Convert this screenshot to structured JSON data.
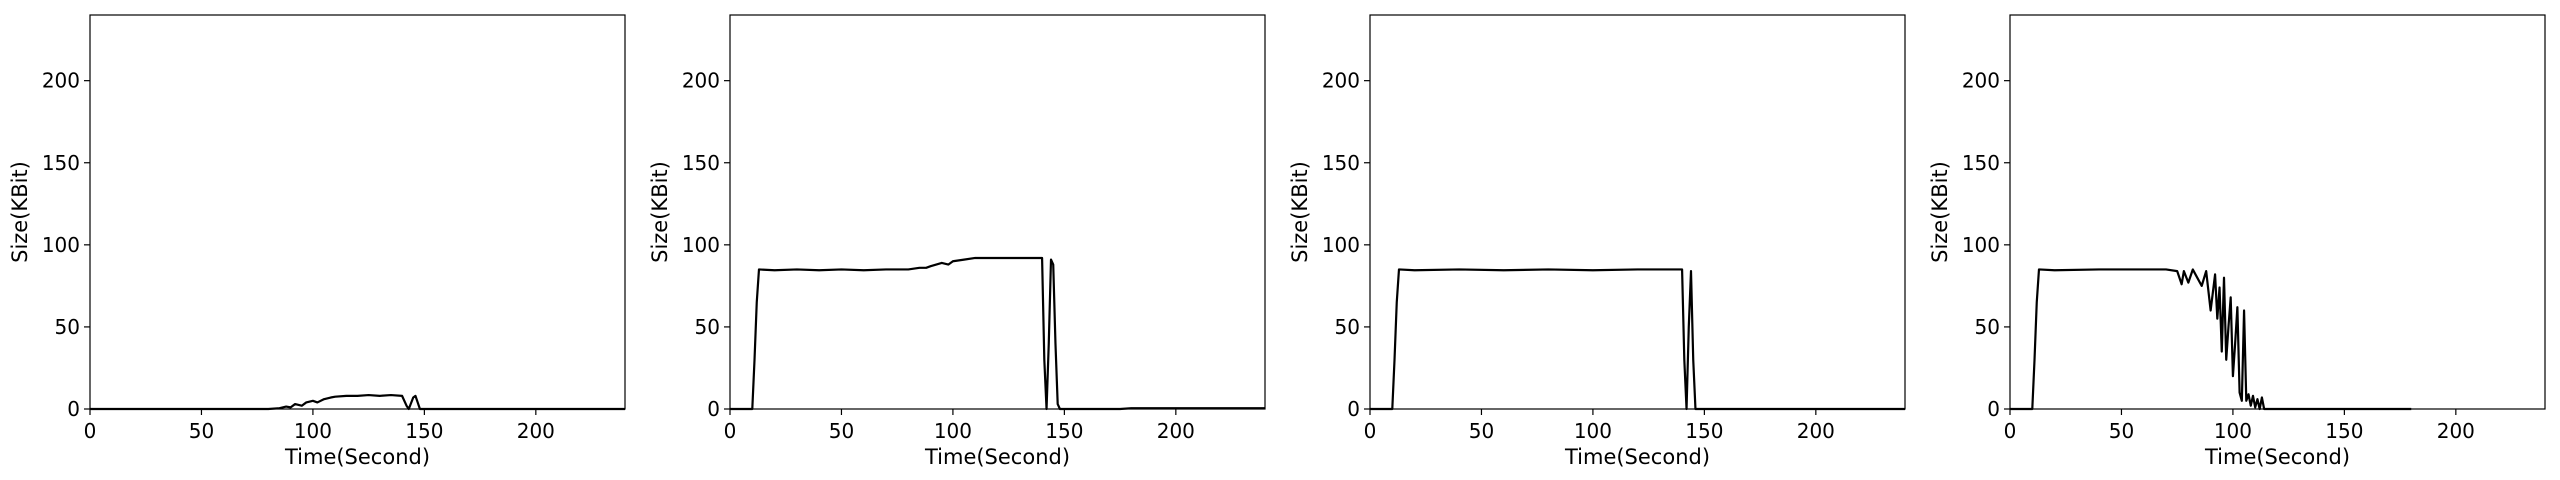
{
  "chart_data": [
    {
      "type": "line",
      "xlabel": "Time(Second)",
      "ylabel": "Size(KBit)",
      "xlim": [
        0,
        240
      ],
      "ylim": [
        0,
        240
      ],
      "xticks": [
        0,
        50,
        100,
        150,
        200
      ],
      "yticks": [
        0,
        50,
        100,
        150,
        200
      ],
      "grid": false,
      "series": [
        {
          "color": "#000000",
          "x": [
            0,
            10,
            20,
            40,
            60,
            80,
            85,
            88,
            90,
            92,
            95,
            97,
            100,
            102,
            105,
            108,
            110,
            115,
            120,
            125,
            130,
            135,
            140,
            142,
            143,
            145,
            146,
            147,
            148,
            150,
            160,
            180,
            200,
            220,
            240
          ],
          "y": [
            0,
            0,
            0,
            0,
            0,
            0,
            0.5,
            1.5,
            1,
            3,
            2,
            4,
            5,
            4,
            6,
            7,
            7.5,
            8,
            8,
            8.5,
            8,
            8.5,
            8,
            2,
            0,
            7,
            8,
            4,
            0,
            0,
            0,
            0,
            0,
            0,
            0
          ]
        }
      ]
    },
    {
      "type": "line",
      "xlabel": "Time(Second)",
      "ylabel": "Size(KBit)",
      "xlim": [
        0,
        240
      ],
      "ylim": [
        0,
        240
      ],
      "xticks": [
        0,
        50,
        100,
        150,
        200
      ],
      "yticks": [
        0,
        50,
        100,
        150,
        200
      ],
      "grid": false,
      "series": [
        {
          "color": "#000000",
          "x": [
            0,
            5,
            10,
            11,
            12,
            13,
            20,
            30,
            40,
            50,
            60,
            70,
            80,
            85,
            88,
            90,
            95,
            98,
            100,
            105,
            110,
            120,
            130,
            138,
            140,
            141,
            142,
            143,
            144,
            145,
            146,
            147,
            148,
            150,
            160,
            170,
            175,
            180,
            200,
            220,
            240
          ],
          "y": [
            0,
            0,
            0,
            30,
            65,
            85,
            84.5,
            85,
            84.5,
            85,
            84.5,
            85,
            85,
            86,
            86,
            87,
            89,
            88,
            90,
            91,
            92,
            92,
            92,
            92,
            92,
            30,
            0,
            40,
            91,
            88,
            40,
            3,
            0,
            0,
            0,
            0,
            0,
            0.5,
            0.5,
            0.5,
            0.5
          ]
        }
      ]
    },
    {
      "type": "line",
      "xlabel": "Time(Second)",
      "ylabel": "Size(KBit)",
      "xlim": [
        0,
        240
      ],
      "ylim": [
        0,
        240
      ],
      "xticks": [
        0,
        50,
        100,
        150,
        200
      ],
      "yticks": [
        0,
        50,
        100,
        150,
        200
      ],
      "grid": false,
      "series": [
        {
          "color": "#000000",
          "x": [
            0,
            5,
            10,
            11,
            12,
            13,
            20,
            40,
            60,
            80,
            100,
            120,
            140,
            141,
            142,
            143,
            144,
            145,
            146,
            150,
            160,
            180,
            200,
            220,
            240
          ],
          "y": [
            0,
            0,
            0,
            30,
            65,
            85,
            84.5,
            85,
            84.5,
            85,
            84.5,
            85,
            85,
            30,
            0,
            50,
            84,
            30,
            0,
            0,
            0,
            0,
            0,
            0,
            0
          ]
        }
      ]
    },
    {
      "type": "line",
      "xlabel": "Time(Second)",
      "ylabel": "Size(KBit)",
      "xlim": [
        0,
        240
      ],
      "ylim": [
        0,
        240
      ],
      "xticks": [
        0,
        50,
        100,
        150,
        200
      ],
      "yticks": [
        0,
        50,
        100,
        150,
        200
      ],
      "grid": false,
      "series": [
        {
          "color": "#000000",
          "x": [
            0,
            5,
            10,
            11,
            12,
            13,
            20,
            40,
            60,
            70,
            75,
            77,
            78,
            80,
            82,
            84,
            86,
            88,
            90,
            92,
            93,
            94,
            95,
            96,
            97,
            98,
            99,
            100,
            101,
            102,
            103,
            104,
            105,
            106,
            107,
            108,
            109,
            110,
            111,
            112,
            113,
            114,
            115,
            116,
            120,
            140,
            160,
            180
          ],
          "y": [
            0,
            0,
            0,
            30,
            65,
            85,
            84.5,
            85,
            85,
            85,
            84,
            76,
            84,
            77,
            85,
            80,
            75,
            84,
            60,
            82,
            55,
            74,
            35,
            80,
            30,
            50,
            68,
            20,
            40,
            62,
            10,
            5,
            60,
            5,
            9,
            2,
            8,
            1,
            6,
            0,
            7,
            0,
            0,
            0,
            0,
            0,
            0,
            0
          ]
        }
      ]
    }
  ]
}
